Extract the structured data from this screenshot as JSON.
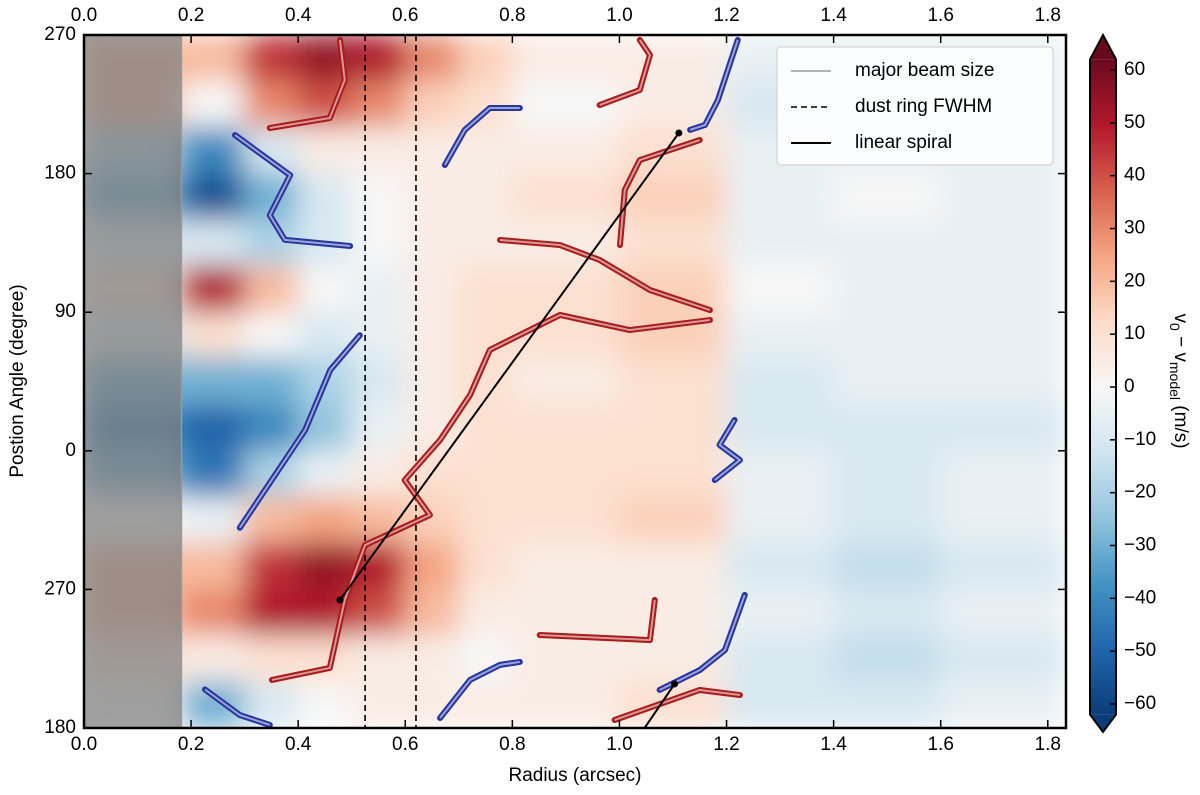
{
  "chart_data": {
    "type": "heatmap",
    "xlabel": "Radius (arcsec)",
    "ylabel": "Postion Angle (degree)",
    "xlim": [
      0,
      1.834
    ],
    "xticks": [
      {
        "value": 0,
        "label": "0.0"
      },
      0.2,
      0.4,
      0.6,
      0.8,
      {
        "value": 1,
        "label": "1.0"
      },
      1.2,
      1.4,
      1.6,
      1.8
    ],
    "ylim": [
      -180,
      270
    ],
    "yticks": [
      270,
      180,
      90,
      0,
      {
        "value": -90,
        "label": "270"
      },
      {
        "value": -180,
        "label": "180"
      }
    ],
    "x_edges": [
      0,
      0.182,
      0.3,
      0.4,
      0.5,
      0.6,
      0.7,
      0.8,
      1.0,
      1.2,
      1.4,
      1.6,
      1.834
    ],
    "y_edges": [
      270,
      240,
      210,
      180,
      150,
      120,
      90,
      60,
      30,
      0,
      -30,
      -60,
      -90,
      -120,
      -150,
      -180
    ],
    "z": [
      [
        20,
        20,
        45,
        55,
        50,
        30,
        15,
        5,
        5,
        -5,
        -5,
        -5
      ],
      [
        20,
        0,
        30,
        40,
        30,
        15,
        10,
        0,
        5,
        -10,
        -5,
        -5
      ],
      [
        -20,
        -40,
        -10,
        5,
        5,
        5,
        5,
        5,
        10,
        -5,
        -5,
        -5
      ],
      [
        -30,
        -55,
        -30,
        -10,
        0,
        5,
        5,
        10,
        15,
        -5,
        0,
        -5
      ],
      [
        -10,
        -10,
        -20,
        -10,
        0,
        5,
        5,
        5,
        10,
        -5,
        -5,
        -5
      ],
      [
        10,
        50,
        20,
        0,
        -5,
        5,
        10,
        10,
        15,
        0,
        -5,
        -5
      ],
      [
        -10,
        10,
        0,
        -10,
        -5,
        5,
        10,
        10,
        15,
        -5,
        -5,
        -5
      ],
      [
        -30,
        -30,
        -30,
        -20,
        -10,
        5,
        10,
        5,
        10,
        -10,
        -5,
        -5
      ],
      [
        -40,
        -50,
        -40,
        -25,
        -5,
        5,
        10,
        10,
        10,
        -10,
        -10,
        -10
      ],
      [
        -30,
        -45,
        -20,
        -5,
        5,
        10,
        10,
        10,
        10,
        -5,
        -10,
        -5
      ],
      [
        0,
        -5,
        20,
        25,
        20,
        15,
        10,
        10,
        15,
        -5,
        -10,
        -5
      ],
      [
        20,
        20,
        45,
        55,
        50,
        25,
        10,
        5,
        5,
        -10,
        -15,
        -10
      ],
      [
        20,
        30,
        50,
        50,
        40,
        20,
        5,
        5,
        5,
        -5,
        -10,
        -5
      ],
      [
        10,
        5,
        10,
        10,
        5,
        5,
        0,
        5,
        5,
        -10,
        -15,
        -10
      ],
      [
        0,
        -30,
        -10,
        0,
        5,
        5,
        5,
        5,
        10,
        -10,
        -10,
        -5
      ]
    ],
    "colorbar": {
      "label_parts": [
        "v",
        "0",
        " − v",
        "model",
        " (m/s)"
      ],
      "lim": [
        -62,
        62
      ],
      "ticks": [
        60,
        50,
        40,
        30,
        20,
        10,
        0,
        {
          "value": -10,
          "label": "−10"
        },
        {
          "value": -20,
          "label": "−20"
        },
        {
          "value": -30,
          "label": "−30"
        },
        {
          "value": -40,
          "label": "−40"
        },
        {
          "value": -50,
          "label": "−50"
        },
        {
          "value": -60,
          "label": "−60"
        }
      ],
      "colors": [
        "#0b3d78",
        "#2166ac",
        "#4393c3",
        "#92c5de",
        "#d1e5f0",
        "#f7f7f7",
        "#fddbc7",
        "#f4a582",
        "#d6604d",
        "#b2182b",
        "#6a0a1f"
      ]
    },
    "beam_size": 0.182,
    "dust_ring": [
      0.525,
      0.62
    ],
    "contours": [
      {
        "color": "#2636a0",
        "r": [
          0.282,
          0.385,
          0.347,
          0.375,
          0.497
        ],
        "pa": [
          205,
          179,
          153,
          137,
          133
        ]
      },
      {
        "color": "#2636a0",
        "r": [
          0.291,
          0.413,
          0.46,
          0.515
        ],
        "pa": [
          -50,
          13.5,
          52.5,
          75
        ]
      },
      {
        "color": "#2636a0",
        "r": [
          0.674,
          0.711,
          0.758,
          0.814
        ],
        "pa": [
          185.6,
          208.3,
          222.6,
          222.6
        ]
      },
      {
        "color": "#2636a0",
        "r": [
          1.221,
          1.184,
          1.16,
          1.132
        ],
        "pa": [
          266.8,
          227.8,
          211.6,
          208.4
        ]
      },
      {
        "color": "#2636a0",
        "r": [
          1.215,
          1.187,
          1.225,
          1.178
        ],
        "pa": [
          20,
          3.8,
          -6,
          -19
        ]
      },
      {
        "color": "#2636a0",
        "r": [
          1.234,
          1.197,
          1.15,
          1.075
        ],
        "pa": [
          -93.6,
          -129.4,
          -142.4,
          -155.3
        ]
      },
      {
        "color": "#2636a0",
        "r": [
          0.665,
          0.721,
          0.777,
          0.814
        ],
        "pa": [
          -173.5,
          -148.8,
          -139,
          -137.1
        ]
      },
      {
        "color": "#2636a0",
        "r": [
          0.226,
          0.291,
          0.347
        ],
        "pa": [
          -155,
          -171.6,
          -178
        ]
      },
      {
        "color": "#a81c1c",
        "r": [
          0.347,
          0.459,
          0.487,
          0.478
        ],
        "pa": [
          209.6,
          216.1,
          240.8,
          266.8
        ]
      },
      {
        "color": "#a81c1c",
        "r": [
          0.351,
          0.459,
          0.487,
          0.525,
          0.646,
          0.599,
          0.665,
          0.721,
          0.758,
          0.889,
          1.019,
          1.169
        ],
        "pa": [
          -148.8,
          -141,
          -96.9,
          -61.2,
          -41.7,
          -19,
          7,
          36.2,
          65.5,
          88.2,
          78.4,
          84.9
        ]
      },
      {
        "color": "#a81c1c",
        "r": [
          1.169,
          1.057,
          0.963,
          0.889,
          0.777
        ],
        "pa": [
          91.4,
          104.4,
          123.9,
          133.6,
          136.9
        ]
      },
      {
        "color": "#a81c1c",
        "r": [
          1.001,
          1.01,
          1.038,
          1.15
        ],
        "pa": [
          133.6,
          169.4,
          188.8,
          201.8
        ]
      },
      {
        "color": "#a81c1c",
        "r": [
          0.963,
          1.038,
          1.057,
          1.038
        ],
        "pa": [
          224.5,
          234.3,
          257,
          266.8
        ]
      },
      {
        "color": "#a81c1c",
        "r": [
          0.851,
          1.057,
          1.066
        ],
        "pa": [
          -119.6,
          -122.9,
          -96.9
        ]
      },
      {
        "color": "#a81c1c",
        "r": [
          0.991,
          1.15,
          1.225
        ],
        "pa": [
          -174.8,
          -155.3,
          -158.6
        ]
      }
    ],
    "spiral": [
      {
        "r": [
          0.478,
          1.111
        ],
        "pa": [
          -96.9,
          206.4
        ]
      },
      {
        "r": [
          1.047,
          1.103
        ],
        "pa": [
          -180,
          -151.4
        ]
      }
    ],
    "legend": {
      "loc": "upper right",
      "entries": [
        "major beam size",
        "dust ring FWHM",
        "linear spiral"
      ]
    }
  }
}
